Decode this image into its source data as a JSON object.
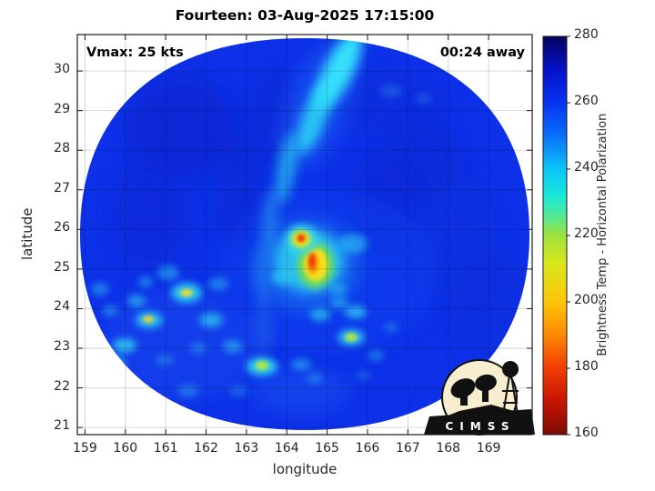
{
  "chart_data": {
    "type": "heatmap",
    "title": "Fourteen: 03-Aug-2025 17:15:00",
    "xlabel": "longitude",
    "ylabel": "latitude",
    "x_ticks": [
      159,
      160,
      161,
      162,
      163,
      164,
      165,
      166,
      167,
      168,
      169
    ],
    "y_ticks": [
      21,
      22,
      23,
      24,
      25,
      26,
      27,
      28,
      29,
      30
    ],
    "xlim": [
      158.81,
      170.08
    ],
    "ylim": [
      20.82,
      30.92
    ],
    "grid": true,
    "annotations": {
      "vmax": "Vmax: 25 kts",
      "time_away": "00:24 away"
    },
    "colorbar": {
      "label": "Brightness Temp - Horizontal Polarization",
      "min": 160,
      "max": 280,
      "ticks": [
        160,
        180,
        200,
        220,
        240,
        260,
        280
      ],
      "gradient_stops": [
        {
          "value": 280,
          "color": "#03035e"
        },
        {
          "value": 270,
          "color": "#0412c8"
        },
        {
          "value": 260,
          "color": "#0833f0"
        },
        {
          "value": 250,
          "color": "#0a70fa"
        },
        {
          "value": 240,
          "color": "#0cc4f5"
        },
        {
          "value": 232,
          "color": "#18e8d8"
        },
        {
          "value": 226,
          "color": "#52e896"
        },
        {
          "value": 220,
          "color": "#9ce23c"
        },
        {
          "value": 212,
          "color": "#d8e81e"
        },
        {
          "value": 200,
          "color": "#fdc508"
        },
        {
          "value": 190,
          "color": "#fd8903"
        },
        {
          "value": 180,
          "color": "#f03c04"
        },
        {
          "value": 170,
          "color": "#c51403"
        },
        {
          "value": 160,
          "color": "#7e0c02"
        }
      ]
    },
    "field_summary": {
      "description": "Circular microwave swath, background ~250-262 K (blue), cyan rainband streak from north into center, convective cold spots southwest and south of center",
      "swath_center": {
        "lon": 164.45,
        "lat": 25.8
      },
      "notable_points": [
        {
          "lon": 164.36,
          "lat": 25.76,
          "temp_k": 170,
          "note": "small red/orange cold eye spot"
        },
        {
          "lon": 164.72,
          "lat": 25.11,
          "temp_k": 200,
          "note": "yellow-orange convective blob"
        },
        {
          "lon": 165.28,
          "lat": 30.0,
          "temp_k": 235,
          "note": "bright cyan rainband streak"
        },
        {
          "lon": 161.52,
          "lat": 24.4,
          "temp_k": 215,
          "note": "yellow-core cell in SW cluster"
        },
        {
          "lon": 160.59,
          "lat": 23.71,
          "temp_k": 217,
          "note": "yellow-core cell in SW cluster"
        },
        {
          "lon": 163.39,
          "lat": 22.54,
          "temp_k": 220,
          "note": "green-core cell south"
        },
        {
          "lon": 165.6,
          "lat": 23.28,
          "temp_k": 221,
          "note": "green-core cell south-southeast"
        }
      ]
    },
    "logo_text": "CIMSS"
  }
}
